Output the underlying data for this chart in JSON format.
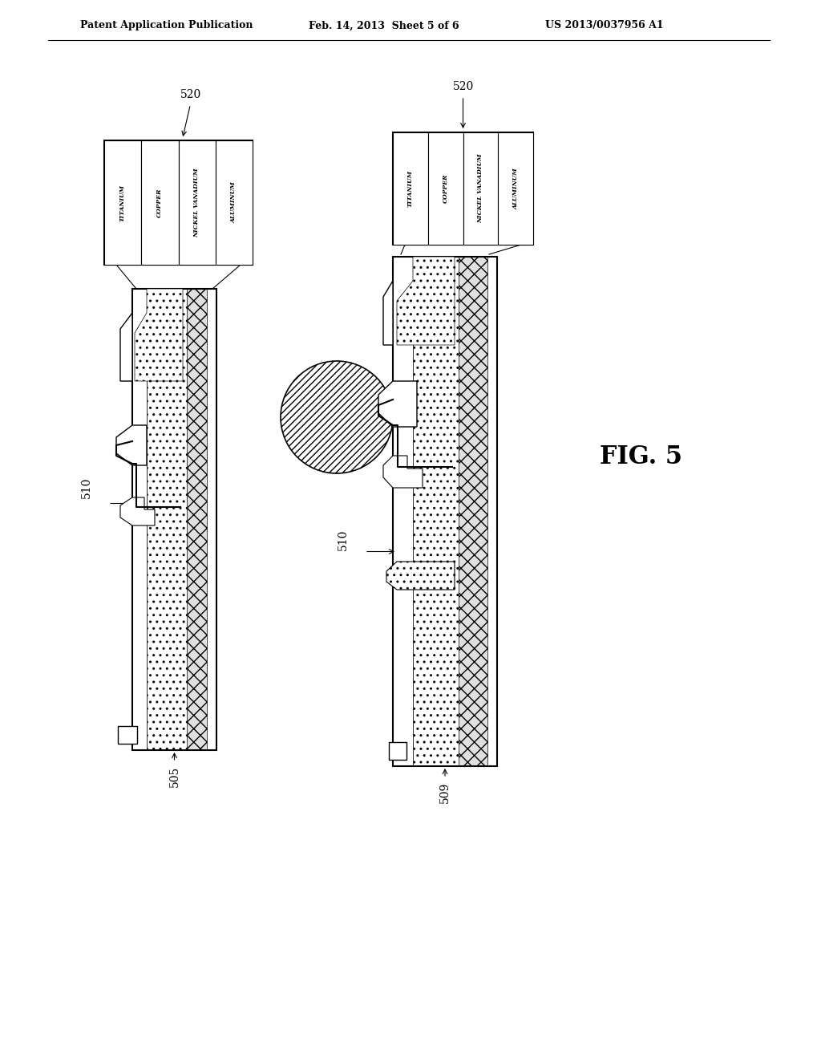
{
  "header_left": "Patent Application Publication",
  "header_mid": "Feb. 14, 2013  Sheet 5 of 6",
  "header_right": "US 2013/0037956 A1",
  "fig_label": "FIG. 5",
  "legend_layers": [
    "TITANIUM",
    "COPPER",
    "NICKEL VANADIUM",
    "ALUMINUM"
  ],
  "label_520": "520",
  "label_510_left": "510",
  "label_510_right": "510",
  "label_505": "505",
  "label_509": "509",
  "bg_color": "#ffffff",
  "line_color": "#000000",
  "hatch_color": "#c8c8c8",
  "dot_color": "#f0f0f0"
}
